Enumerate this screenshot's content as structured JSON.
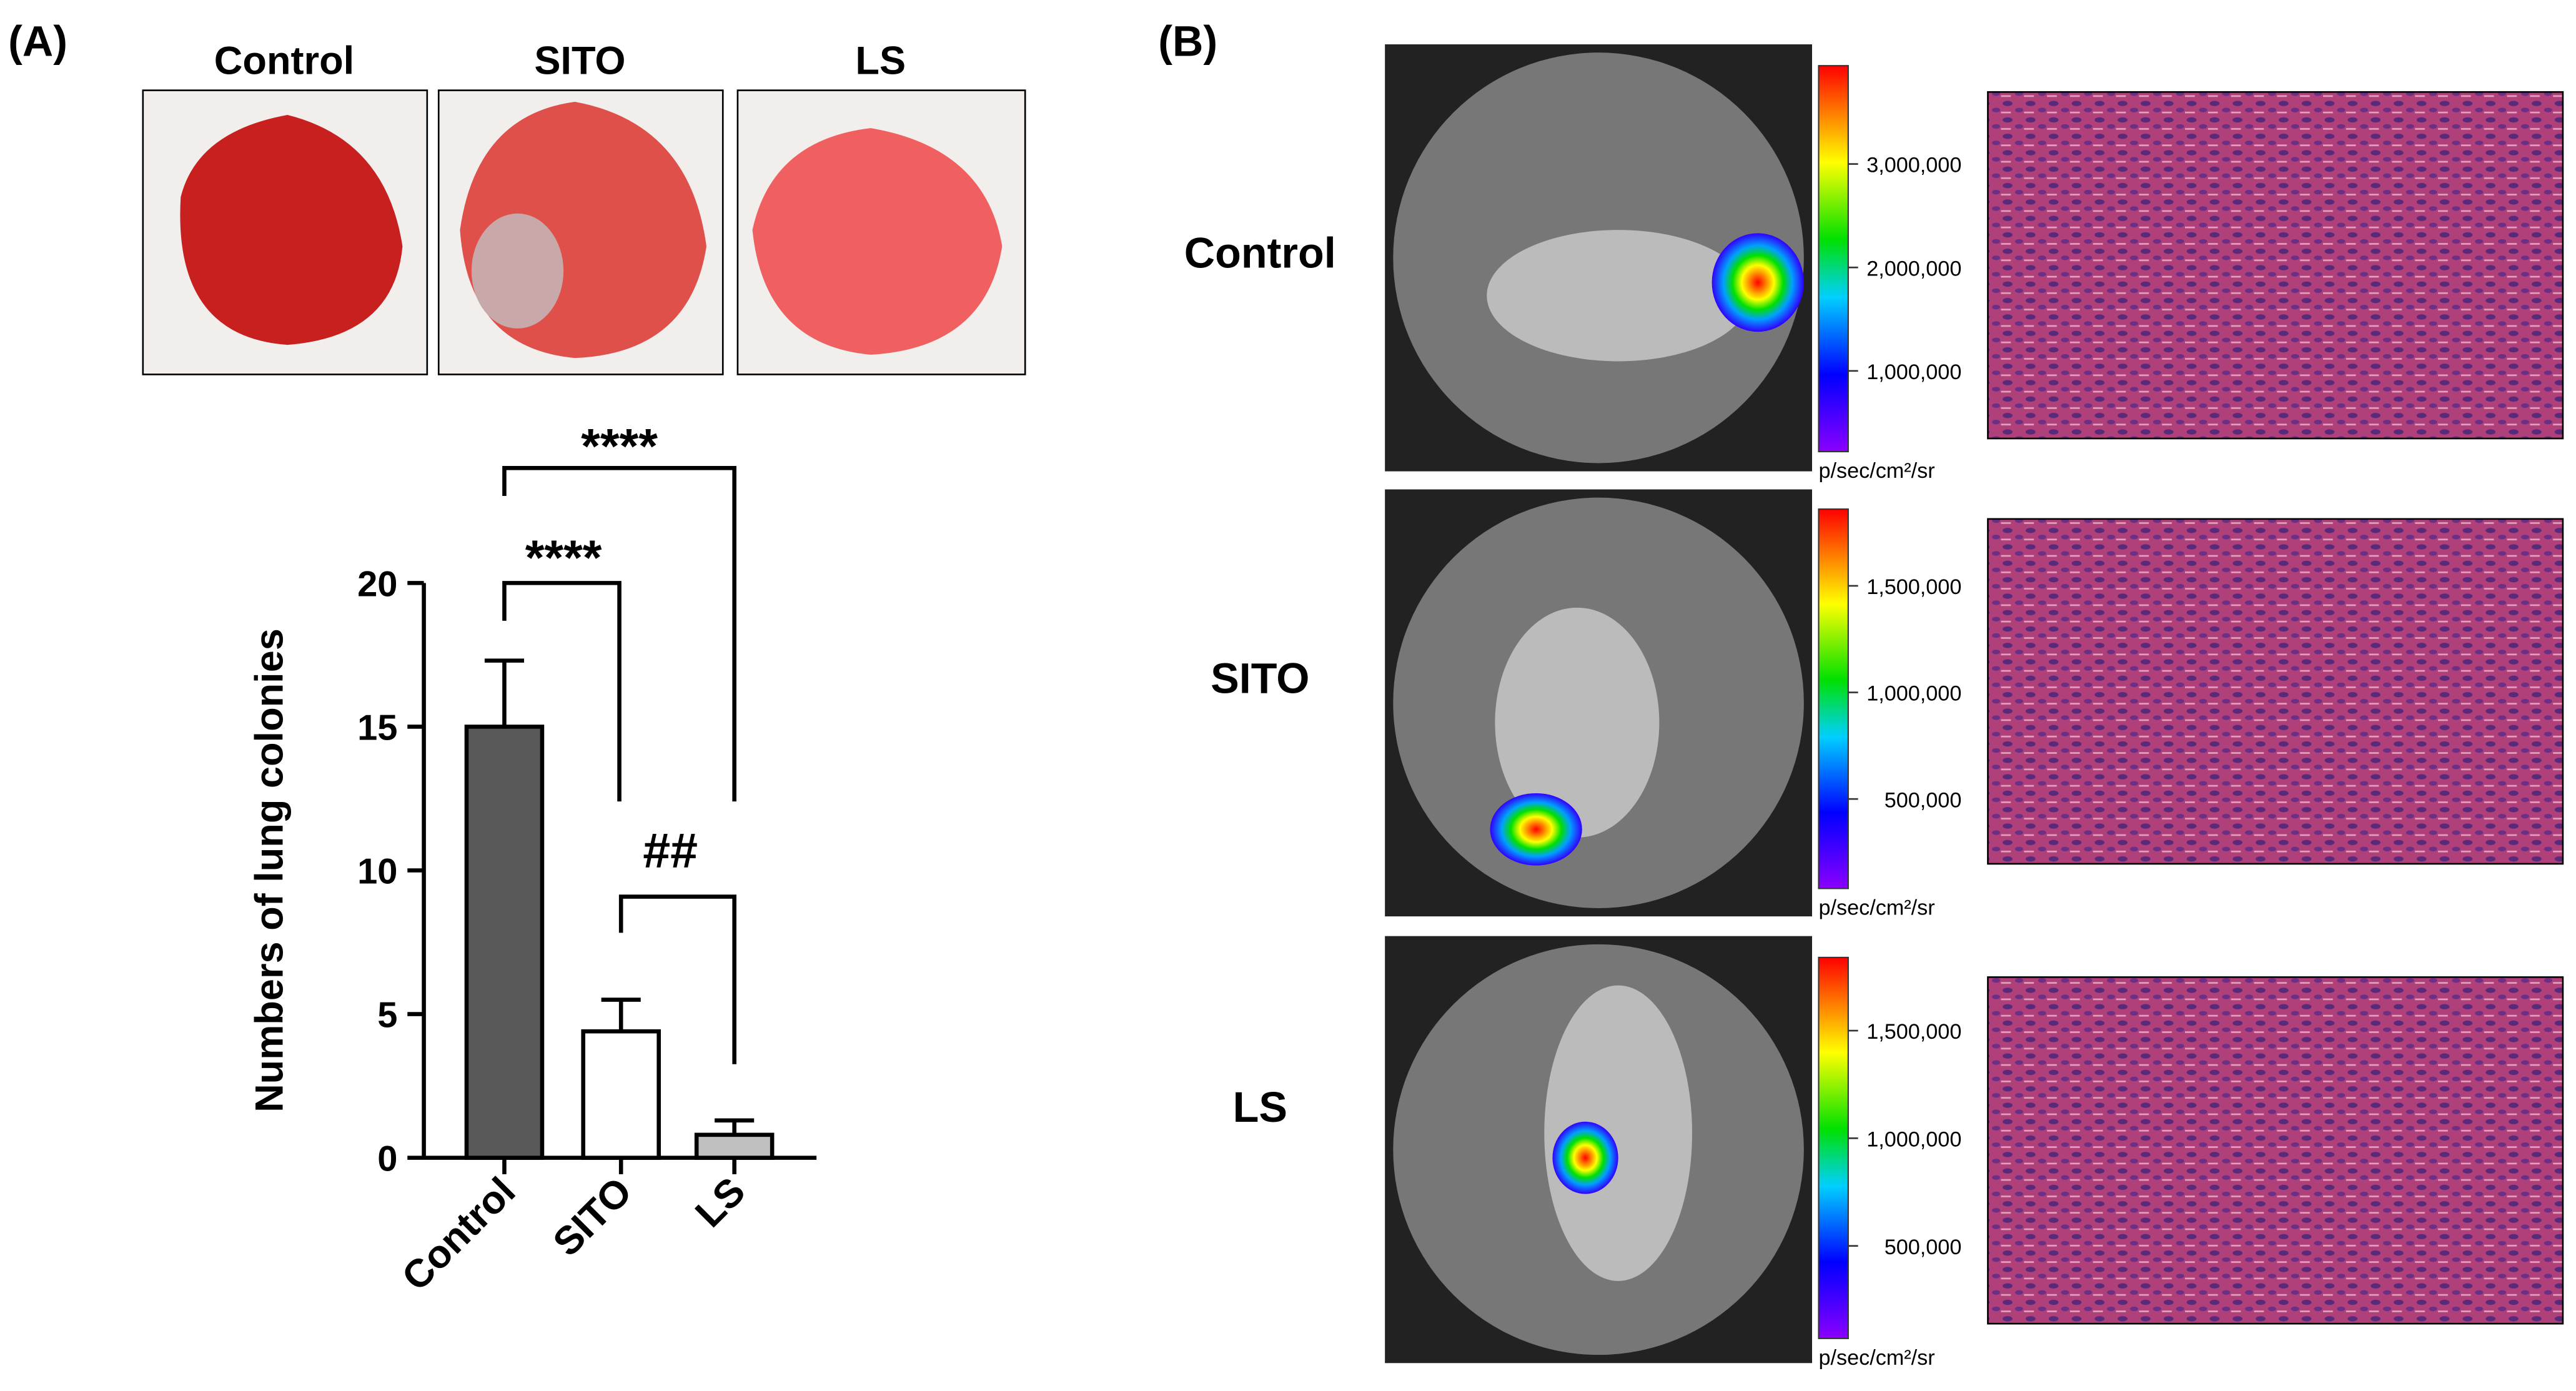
{
  "panel_labels": [
    "(A)",
    "(B)"
  ],
  "panel_a": {
    "photo_labels": [
      "Control",
      "SITO",
      "LS"
    ]
  },
  "chart_data": {
    "type": "bar",
    "y_label": "Numbers of lung colonies",
    "categories": [
      "Control",
      "SITO",
      "LS"
    ],
    "values": [
      15,
      4.4,
      0.8
    ],
    "errors": [
      2.3,
      1.1,
      0.5
    ],
    "colors": [
      "#595959",
      "#ffffff",
      "#c0c0c0"
    ],
    "ylim": [
      0,
      20
    ],
    "yticks": [
      0,
      5,
      10,
      15,
      20
    ],
    "annotations": [
      "****",
      "****",
      "##"
    ]
  },
  "panel_b": {
    "rows": [
      {
        "label": "Control",
        "unit": "p/sec/cm²/sr",
        "clim": [
          220000,
          3950000
        ],
        "cticks": [
          {
            "value": 1000000,
            "label": "1,000,000"
          },
          {
            "value": 2000000,
            "label": "2,000,000"
          },
          {
            "value": 3000000,
            "label": "3,000,000"
          }
        ]
      },
      {
        "label": "SITO",
        "unit": "p/sec/cm²/sr",
        "clim": [
          80000,
          1860000
        ],
        "cticks": [
          {
            "value": 500000,
            "label": "500,000"
          },
          {
            "value": 1000000,
            "label": "1,000,000"
          },
          {
            "value": 1500000,
            "label": "1,500,000"
          }
        ]
      },
      {
        "label": "LS",
        "unit": "p/sec/cm²/sr",
        "clim": [
          70000,
          1840000
        ],
        "cticks": [
          {
            "value": 500000,
            "label": "500,000"
          },
          {
            "value": 1000000,
            "label": "1,000,000"
          },
          {
            "value": 1500000,
            "label": "1,500,000"
          }
        ]
      }
    ]
  }
}
